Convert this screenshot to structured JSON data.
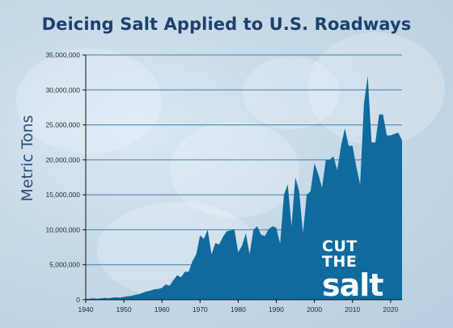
{
  "title": "Deicing Salt Applied to U.S. Roadways",
  "logo": {
    "line1": "CUT",
    "line2": "THE",
    "line3": "salt"
  },
  "colors": {
    "fill": "#0f6a9e",
    "title": "#1f3f6e",
    "grid": "#3f7fae",
    "axis": "#111111"
  },
  "chart_data": {
    "type": "area",
    "title": "Deicing Salt Applied to U.S. Roadways",
    "xlabel": "",
    "ylabel": "Metric Tons",
    "xlim": [
      1940,
      2023
    ],
    "ylim": [
      0,
      35000000
    ],
    "grid": true,
    "x_ticks": [
      1940,
      1950,
      1960,
      1970,
      1980,
      1990,
      2000,
      2010,
      2020
    ],
    "y_ticks": [
      0,
      5000000,
      10000000,
      15000000,
      20000000,
      25000000,
      30000000,
      35000000
    ],
    "x_tick_labels": [
      "1940",
      "1950",
      "1960",
      "1970",
      "1980",
      "1990",
      "2000",
      "2010",
      "2020"
    ],
    "y_tick_labels": [
      "0",
      "5,000,000",
      "10,000,000",
      "15,000,000",
      "20,000,000",
      "25,000,000",
      "30,000,000",
      "35,000,000"
    ],
    "series": [
      {
        "x": [
          1940,
          1941,
          1942,
          1943,
          1944,
          1945,
          1946,
          1947,
          1948,
          1949,
          1950,
          1951,
          1952,
          1953,
          1954,
          1955,
          1956,
          1957,
          1958,
          1959,
          1960,
          1961,
          1962,
          1963,
          1964,
          1965,
          1966,
          1967,
          1968,
          1969,
          1970,
          1971,
          1972,
          1973,
          1974,
          1975,
          1976,
          1977,
          1978,
          1979,
          1980,
          1981,
          1982,
          1983,
          1984,
          1985,
          1986,
          1987,
          1988,
          1989,
          1990,
          1991,
          1992,
          1993,
          1994,
          1995,
          1996,
          1997,
          1998,
          1999,
          2000,
          2001,
          2002,
          2003,
          2004,
          2005,
          2006,
          2007,
          2008,
          2009,
          2010,
          2011,
          2012,
          2013,
          2014,
          2015,
          2016,
          2017,
          2018,
          2019,
          2020,
          2021,
          2022,
          2023
        ],
        "values": [
          100000,
          150000,
          200000,
          150000,
          200000,
          250000,
          200000,
          300000,
          350000,
          300000,
          400000,
          500000,
          550000,
          700000,
          800000,
          1000000,
          1200000,
          1300000,
          1500000,
          1550000,
          1700000,
          2200000,
          2000000,
          2800000,
          3500000,
          3200000,
          4000000,
          4000000,
          5500000,
          6500000,
          9200000,
          8700000,
          10000000,
          6500000,
          8100000,
          7900000,
          9000000,
          9800000,
          9900000,
          10100000,
          6800000,
          7700000,
          9500000,
          6500000,
          10000000,
          10500000,
          9300000,
          9100000,
          10100000,
          10500000,
          10300000,
          8000000,
          15000000,
          16500000,
          10500000,
          17500000,
          15500000,
          9500000,
          15000000,
          15500000,
          19500000,
          18000000,
          16000000,
          20000000,
          20000000,
          20500000,
          18500000,
          22000000,
          24500000,
          22000000,
          22000000,
          19000000,
          16500000,
          28000000,
          32000000,
          22500000,
          22500000,
          26500000,
          26500000,
          23500000,
          23500000,
          23700000,
          23900000,
          22800000
        ]
      }
    ]
  }
}
